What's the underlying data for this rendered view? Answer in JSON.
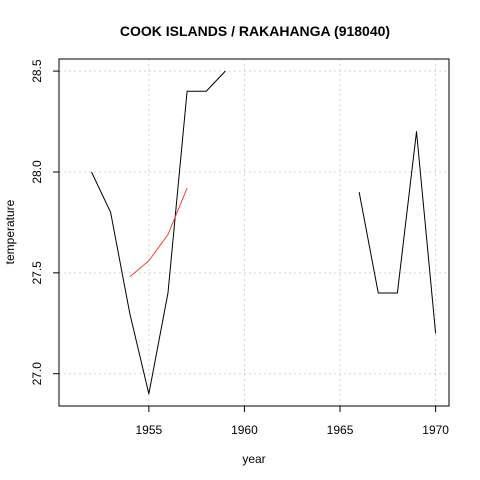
{
  "chart_data": {
    "type": "line",
    "title": "COOK ISLANDS / RAKAHANGA (918040)",
    "xlabel": "year",
    "ylabel": "temperature",
    "xlim": [
      1950.3,
      1970.7
    ],
    "ylim": [
      26.84,
      28.56
    ],
    "x_ticks": [
      1955,
      1960,
      1965,
      1970
    ],
    "x_tick_labels": [
      "1955",
      "1960",
      "1965",
      "1970"
    ],
    "y_ticks": [
      27.0,
      27.5,
      28.0,
      28.5
    ],
    "y_tick_labels": [
      "27.0",
      "27.5",
      "28.0",
      "28.5"
    ],
    "grid": true,
    "series": [
      {
        "color": "#000000",
        "segments": [
          [
            [
              1952,
              28.0
            ],
            [
              1953,
              27.8
            ],
            [
              1954,
              27.3
            ],
            [
              1955,
              26.9
            ],
            [
              1956,
              27.4
            ],
            [
              1957,
              28.4
            ],
            [
              1958,
              28.4
            ],
            [
              1959,
              28.5
            ]
          ],
          [
            [
              1966,
              27.9
            ],
            [
              1967,
              27.4
            ],
            [
              1968,
              27.4
            ],
            [
              1969,
              28.2
            ],
            [
              1970,
              27.2
            ]
          ]
        ]
      },
      {
        "color": "#e8473c",
        "segments": [
          [
            [
              1954,
              27.48
            ],
            [
              1955,
              27.56
            ],
            [
              1956,
              27.69
            ],
            [
              1957,
              27.92
            ]
          ]
        ]
      }
    ]
  }
}
